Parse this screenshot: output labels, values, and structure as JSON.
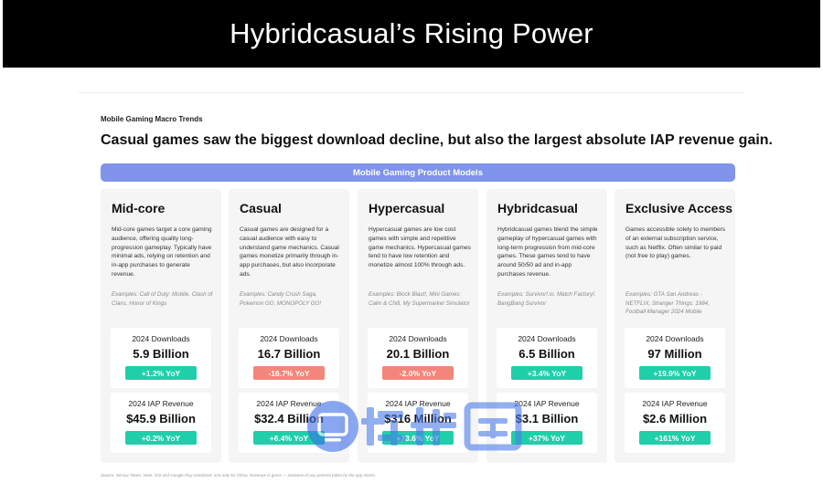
{
  "slide_title": "Hybridcasual’s Rising Power",
  "section_label": "Mobile Gaming Macro Trends",
  "headline": "Casual games saw the biggest download decline, but also the largest absolute IAP revenue gain.",
  "models_bar_label": "Mobile Gaming Product Models",
  "downloads_label": "2024 Downloads",
  "revenue_label": "2024 IAP Revenue",
  "cards": [
    {
      "title": "Mid-core",
      "description": "Mid-core games target a core gaming audience, offering quality long-progression gameplay. Typically have minimal ads, relying on retention and in-app purchases to generate revenue.",
      "examples": "Examples: Call of Duty: Mobile, Clash of Clans, Honor of Kings",
      "downloads": "5.9 Billion",
      "downloads_yoy": "+1.2% YoY",
      "revenue": "$45.9 Billion",
      "revenue_yoy": "+0.2% YoY"
    },
    {
      "title": "Casual",
      "description": "Casual games are designed for a casual audience with easy to understand game mechanics. Casual games monetize primarily through in-app purchases, but also incorporate ads.",
      "examples": "Examples: Candy Crush Saga, Pokemon GO, MONOPOLY GO!",
      "downloads": "16.7 Billion",
      "downloads_yoy": "-16.7% YoY",
      "revenue": "$32.4 Billion",
      "revenue_yoy": "+6.4% YoY"
    },
    {
      "title": "Hypercasual",
      "description": "Hypercasual games are low cost games with simple and repetitive game mechanics. Hypercasual games tend to have low retention and monetize almost 100% through ads.",
      "examples": "Examples: Block Blast!, Mini Games: Calm & Chill, My Supermarket Simulator",
      "downloads": "20.1 Billion",
      "downloads_yoy": "-2.0% YoY",
      "revenue": "$316 Million",
      "revenue_yoy": "+73.6% YoY"
    },
    {
      "title": "Hybridcasual",
      "description": "Hybridcasual games blend the simple gameplay of hypercasual games with long-term progression from mid-core games. These games tend to have around 50/50 ad and in-app purchases revenue.",
      "examples": "Examples: Survivor!.io, Match Factory!, BangBang Survivor",
      "downloads": "6.5 Billion",
      "downloads_yoy": "+3.4% YoY",
      "revenue": "$3.1 Billion",
      "revenue_yoy": "+37% YoY"
    },
    {
      "title": "Exclusive Access",
      "description": "Games accessible solely to members of an external subscription service, such as Netflix. Often similar to paid (not free to play) games.",
      "examples": "Examples: GTA San Andreas - NETFLIX, Stranger Things: 1984, Football Manager 2024 Mobile",
      "downloads": "97 Million",
      "downloads_yoy": "+19.9% YoY",
      "revenue": "$2.6 Million",
      "revenue_yoy": "+161% YoY"
    }
  ],
  "source_note": "Source: Sensor Tower. Note: iOS and Google Play combined. iOS only for China. Revenue is gross — inclusive of any percent taken by the app stores.",
  "colors": {
    "title_bar": "#000000",
    "models_bar": "#7f94ea",
    "yoy_positive": "#1fcfaa",
    "yoy_negative": "#f3867a",
    "card_bg": "#f5f5f5"
  },
  "watermark_icon": "watermark-logo-icon"
}
